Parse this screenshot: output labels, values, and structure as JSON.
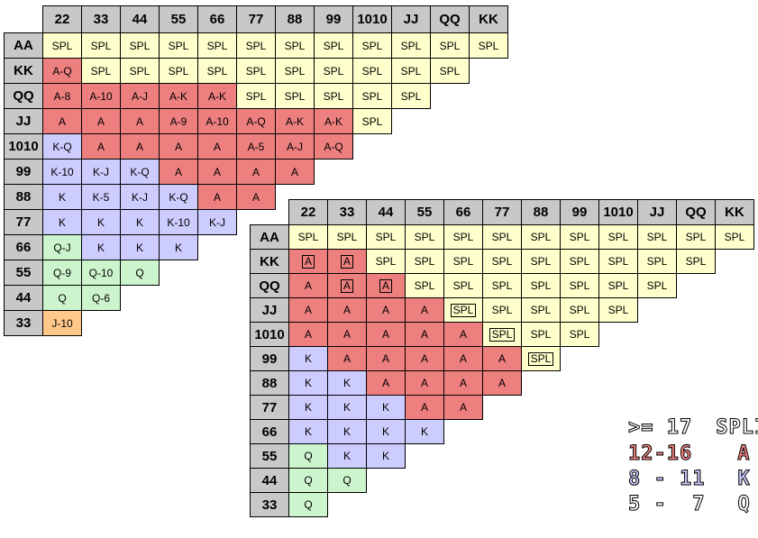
{
  "colors": {
    "header": "#c8c8c8",
    "split": "#ffffcc",
    "A": "#ee7f7f",
    "K": "#ccccff",
    "Q": "#cdf5cd",
    "J": "#ffc98c"
  },
  "table1": {
    "columns": [
      "22",
      "33",
      "44",
      "55",
      "66",
      "77",
      "88",
      "99",
      "1010",
      "JJ",
      "QQ",
      "KK"
    ],
    "rows": [
      {
        "label": "AA",
        "cells": [
          "SPL",
          "SPL",
          "SPL",
          "SPL",
          "SPL",
          "SPL",
          "SPL",
          "SPL",
          "SPL",
          "SPL",
          "SPL",
          "SPL"
        ]
      },
      {
        "label": "KK",
        "cells": [
          "A-Q",
          "SPL",
          "SPL",
          "SPL",
          "SPL",
          "SPL",
          "SPL",
          "SPL",
          "SPL",
          "SPL",
          "SPL"
        ]
      },
      {
        "label": "QQ",
        "cells": [
          "A-8",
          "A-10",
          "A-J",
          "A-K",
          "A-K",
          "SPL",
          "SPL",
          "SPL",
          "SPL",
          "SPL"
        ]
      },
      {
        "label": "JJ",
        "cells": [
          "A",
          "A",
          "A",
          "A-9",
          "A-10",
          "A-Q",
          "A-K",
          "A-K",
          "SPL"
        ]
      },
      {
        "label": "1010",
        "cells": [
          "K-Q",
          "A",
          "A",
          "A",
          "A",
          "A-5",
          "A-J",
          "A-Q"
        ]
      },
      {
        "label": "99",
        "cells": [
          "K-10",
          "K-J",
          "K-Q",
          "A",
          "A",
          "A",
          "A"
        ]
      },
      {
        "label": "88",
        "cells": [
          "K",
          "K-5",
          "K-J",
          "K-Q",
          "A",
          "A"
        ]
      },
      {
        "label": "77",
        "cells": [
          "K",
          "K",
          "K",
          "K-10",
          "K-J"
        ]
      },
      {
        "label": "66",
        "cells": [
          "Q-J",
          "K",
          "K",
          "K"
        ]
      },
      {
        "label": "55",
        "cells": [
          "Q-9",
          "Q-10",
          "Q"
        ]
      },
      {
        "label": "44",
        "cells": [
          "Q",
          "Q-6"
        ]
      },
      {
        "label": "33",
        "cells": [
          "J-10"
        ]
      }
    ]
  },
  "table2": {
    "columns": [
      "22",
      "33",
      "44",
      "55",
      "66",
      "77",
      "88",
      "99",
      "1010",
      "JJ",
      "QQ",
      "KK"
    ],
    "rows": [
      {
        "label": "AA",
        "cells": [
          "SPL",
          "SPL",
          "SPL",
          "SPL",
          "SPL",
          "SPL",
          "SPL",
          "SPL",
          "SPL",
          "SPL",
          "SPL",
          "SPL"
        ]
      },
      {
        "label": "KK",
        "cells": [
          "A",
          "A",
          "SPL",
          "SPL",
          "SPL",
          "SPL",
          "SPL",
          "SPL",
          "SPL",
          "SPL",
          "SPL"
        ]
      },
      {
        "label": "QQ",
        "cells": [
          "A",
          "A",
          "A",
          "SPL",
          "SPL",
          "SPL",
          "SPL",
          "SPL",
          "SPL",
          "SPL"
        ]
      },
      {
        "label": "JJ",
        "cells": [
          "A",
          "A",
          "A",
          "A",
          "SPL",
          "SPL",
          "SPL",
          "SPL",
          "SPL"
        ]
      },
      {
        "label": "1010",
        "cells": [
          "A",
          "A",
          "A",
          "A",
          "A",
          "SPL",
          "SPL",
          "SPL"
        ]
      },
      {
        "label": "99",
        "cells": [
          "K",
          "A",
          "A",
          "A",
          "A",
          "A",
          "SPL"
        ]
      },
      {
        "label": "88",
        "cells": [
          "K",
          "K",
          "A",
          "A",
          "A",
          "A"
        ]
      },
      {
        "label": "77",
        "cells": [
          "K",
          "K",
          "K",
          "A",
          "A"
        ]
      },
      {
        "label": "66",
        "cells": [
          "K",
          "K",
          "K",
          "K"
        ]
      },
      {
        "label": "55",
        "cells": [
          "Q",
          "K",
          "K"
        ]
      },
      {
        "label": "44",
        "cells": [
          "Q",
          "Q"
        ]
      },
      {
        "label": "33",
        "cells": [
          "Q"
        ]
      }
    ],
    "boxed": [
      [
        1,
        0
      ],
      [
        1,
        1
      ],
      [
        2,
        1
      ],
      [
        2,
        2
      ],
      [
        3,
        4
      ],
      [
        4,
        5
      ],
      [
        5,
        6
      ]
    ]
  },
  "legend": [
    {
      "range": ">= 17",
      "action": "SPLIT",
      "fill": "#ffffff",
      "text": "SPLIT"
    },
    {
      "range": "12-16",
      "action": "A",
      "fill": "#ee7f7f"
    },
    {
      "range": "8 - 11",
      "action": "K",
      "fill": "#ccccff"
    },
    {
      "range": "5 -  7",
      "action": "Q",
      "fill": "#ffffff"
    }
  ]
}
